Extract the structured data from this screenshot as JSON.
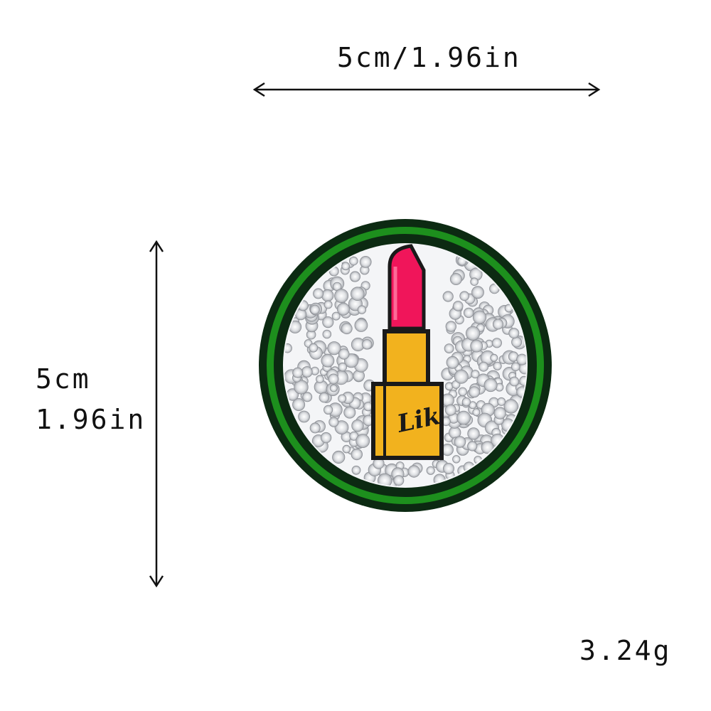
{
  "dimensions": {
    "width_label": "5cm/1.96in",
    "height_label_cm": "5cm",
    "height_label_in": "1.96in",
    "weight_label": "3.24g"
  },
  "patch": {
    "subject": "lipstick",
    "lipstick_text": "Lik",
    "colors": {
      "outer_border": "#0c2a12",
      "green_ring": "#1d8f1d",
      "lipstick_bullet": "#f0155a",
      "lipstick_case": "#f2b21e",
      "crystals": "#c9cbce"
    }
  },
  "icons": {
    "horizontal_arrow": "double-arrow-horizontal",
    "vertical_arrow": "double-arrow-vertical"
  }
}
